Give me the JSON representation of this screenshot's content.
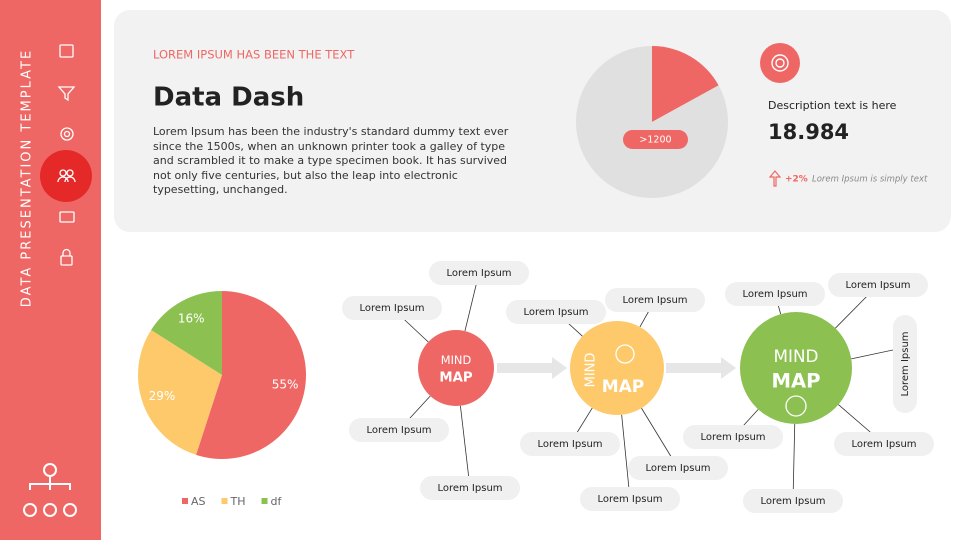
{
  "sidebar": {
    "title": "DATA PRESENTATION TEMPLATE"
  },
  "header": {
    "kicker": "LOREM IPSUM HAS BEEN THE TEXT",
    "title": "Data Dash",
    "body": "Lorem Ipsum has been the industry's standard dummy text ever since the 1500s, when an unknown printer took a galley of type and scrambled it to make a type specimen book. It has survived not only five centuries, but also the leap into electronic typesetting, unchanged."
  },
  "kpi": {
    "description": "Description text is here",
    "value": "18.984",
    "change": "+2%",
    "note": "Lorem Ipsum is simply text"
  },
  "chart_data": [
    {
      "type": "pie",
      "categories": [
        "AS",
        "TH",
        "df"
      ],
      "values": [
        55,
        29,
        16
      ],
      "value_labels": [
        "55%",
        "29%",
        "16%"
      ],
      "colors": [
        "#ef6764",
        "#fdc96b",
        "#8cc152"
      ],
      "legend": "bottom"
    },
    {
      "type": "pie",
      "values": [
        17,
        83
      ],
      "colors": [
        "#ef6764",
        "#e0e0e0"
      ],
      "annotation": ">1200"
    }
  ],
  "mindmap": {
    "nodes": [
      {
        "top": "MIND",
        "bottom": "MAP",
        "color": "#ef6764",
        "branches": [
          "Lorem Ipsum",
          "Lorem Ipsum",
          "Lorem Ipsum",
          "Lorem Ipsum"
        ]
      },
      {
        "top": "MIND",
        "bottom": "MAP",
        "color": "#fdc96b",
        "branches": [
          "Lorem Ipsum",
          "Lorem Ipsum",
          "Lorem Ipsum",
          "Lorem Ipsum",
          "Lorem Ipsum"
        ]
      },
      {
        "top": "MIND",
        "bottom": "MAP",
        "color": "#8cc152",
        "branches": [
          "Lorem Ipsum",
          "Lorem Ipsum",
          "Lorem Ipsum",
          "Lorem Ipsum",
          "Lorem Ipsum",
          "Lorem Ipsum"
        ]
      }
    ]
  }
}
